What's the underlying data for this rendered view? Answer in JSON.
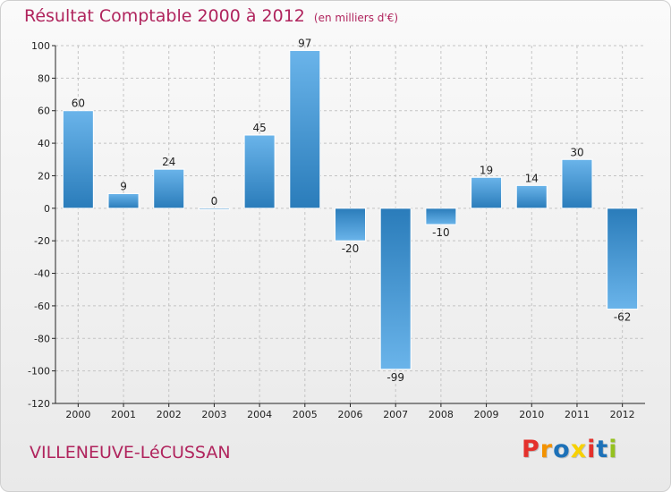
{
  "header": {
    "title": "Résultat Comptable 2000 à 2012",
    "unit": "(en milliers d'€)"
  },
  "footer": {
    "commune": "VILLENEUVE-LéCUSSAN",
    "brand": "Proxiti",
    "brand_letter_colors": [
      "#e4312c",
      "#f39200",
      "#1d71b8",
      "#f7d100",
      "#e4312c",
      "#1d71b8",
      "#95c11f"
    ]
  },
  "colors": {
    "title": "#b0245d",
    "bar_light": "#6ab4ea",
    "bar_dark": "#2a7cba",
    "grid": "#c4c4c4",
    "axis": "#222222",
    "text": "#222222"
  },
  "chart_data": {
    "type": "bar",
    "title": "Résultat Comptable 2000 à 2012",
    "ylabel": "en milliers d'€",
    "xlabel": "",
    "categories": [
      "2000",
      "2001",
      "2002",
      "2003",
      "2004",
      "2005",
      "2006",
      "2007",
      "2008",
      "2009",
      "2010",
      "2011",
      "2012"
    ],
    "values": [
      60,
      9,
      24,
      0,
      45,
      97,
      -20,
      -99,
      -10,
      19,
      14,
      30,
      -62
    ],
    "data_labels": [
      "60",
      "9",
      "24",
      "0",
      "45",
      "97",
      "-20",
      "-99",
      "-10",
      "19",
      "14",
      "30",
      "-62"
    ],
    "ylim": [
      -120,
      100
    ],
    "yticks": [
      100,
      80,
      60,
      40,
      20,
      0,
      -20,
      -40,
      -60,
      -80,
      -100,
      -120
    ],
    "grid": true,
    "legend": "none"
  }
}
